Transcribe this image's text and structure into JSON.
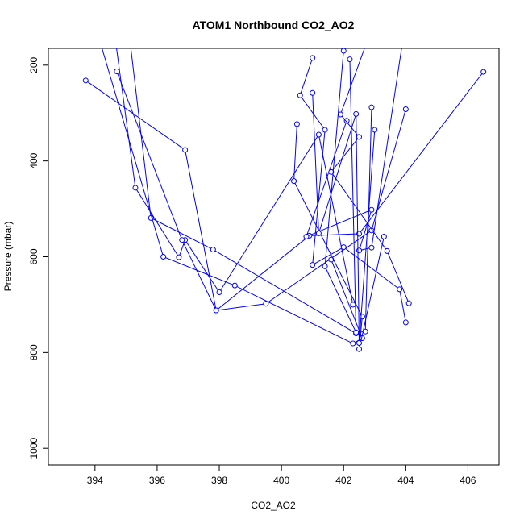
{
  "chart_data": {
    "type": "line",
    "title": "ATOM1 Northbound CO2_AO2",
    "xlabel": "CO2_AO2",
    "ylabel": "Pressure (mbar)",
    "xlim": [
      392.5,
      407.0
    ],
    "ylim": [
      1035,
      165
    ],
    "y_reversed": true,
    "grid": false,
    "line_color": "#0000ff",
    "marker": "open-circle",
    "x_ticks": [
      394,
      396,
      398,
      400,
      402,
      404,
      406
    ],
    "x_tick_labels": [
      "394",
      "396",
      "398",
      "400",
      "402",
      "404",
      "406"
    ],
    "y_ticks": [
      200,
      400,
      600,
      800,
      1000
    ],
    "y_tick_labels": [
      "200",
      "400",
      "600",
      "800",
      "1000"
    ],
    "series": [
      {
        "x": [
          393.7,
          396.9,
          397.9,
          399.5,
          402.9,
          404.0
        ],
        "y": [
          232,
          377,
          712,
          698,
          545,
          292
        ]
      },
      {
        "x": [
          395.1,
          395.8,
          397.8,
          402.4,
          402.2
        ],
        "y": [
          135,
          519,
          585,
          760,
          188
        ]
      },
      {
        "x": [
          394.6,
          395.3,
          396.7,
          396.9,
          398.0,
          401.2,
          402.3
        ],
        "y": [
          120,
          456,
          601,
          565,
          674,
          345,
          700
        ]
      },
      {
        "x": [
          394.7,
          396.8,
          397.9,
          400.9,
          402.5,
          406.5
        ],
        "y": [
          213,
          565,
          712,
          556,
          552,
          214
        ]
      },
      {
        "x": [
          394.0,
          396.2,
          398.5,
          402.3,
          402.6,
          401.6
        ],
        "y": [
          115,
          600,
          660,
          781,
          770,
          606
        ]
      },
      {
        "x": [
          401.0,
          400.6,
          401.4,
          401.0,
          402.0,
          403.8,
          404.0
        ],
        "y": [
          185,
          263,
          335,
          617,
          580,
          668,
          737
        ]
      },
      {
        "x": [
          400.5,
          400.4,
          402.6,
          402.5,
          403.3
        ],
        "y": [
          323,
          442,
          725,
          793,
          558
        ]
      },
      {
        "x": [
          402.1,
          400.8,
          402.9,
          402.5,
          402.9,
          403.9
        ],
        "y": [
          316,
          558,
          502,
          587,
          581,
          150
        ]
      },
      {
        "x": [
          402.7,
          401.9,
          402.5,
          401.6,
          403.4,
          404.1
        ],
        "y": [
          160,
          303,
          350,
          423,
          588,
          697
        ]
      },
      {
        "x": [
          401.0,
          401.2,
          402.4,
          402.5,
          403.0
        ],
        "y": [
          258,
          551,
          302,
          780,
          335
        ]
      },
      {
        "x": [
          402.0,
          401.4,
          402.4,
          402.7,
          402.9
        ],
        "y": [
          170,
          620,
          758,
          756,
          288
        ]
      }
    ]
  }
}
